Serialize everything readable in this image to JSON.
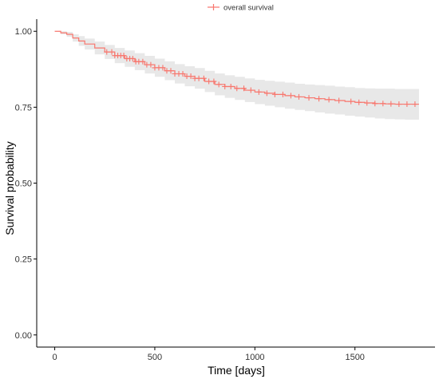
{
  "chart_data": {
    "type": "line",
    "title": "",
    "xlabel": "Time [days]",
    "ylabel": "Survival probability",
    "xlim": [
      -90,
      1900
    ],
    "ylim": [
      -0.04,
      1.04
    ],
    "x_ticks": [
      0,
      500,
      1000,
      1500
    ],
    "x_tick_labels": [
      "0",
      "500",
      "1000",
      "1500"
    ],
    "y_ticks": [
      0.0,
      0.25,
      0.5,
      0.75,
      1.0
    ],
    "y_tick_labels": [
      "0.00",
      "0.25",
      "0.50",
      "0.75",
      "1.00"
    ],
    "grid": false,
    "legend": {
      "position": "top",
      "entries": [
        "overall survival"
      ]
    },
    "colors": {
      "line": "#F8766D",
      "band": "#e8e8e8",
      "axis": "#000000"
    },
    "series": [
      {
        "name": "overall survival",
        "x": [
          0,
          30,
          60,
          90,
          120,
          150,
          200,
          250,
          300,
          350,
          400,
          450,
          500,
          550,
          600,
          650,
          700,
          750,
          800,
          850,
          900,
          950,
          1000,
          1050,
          1100,
          1150,
          1200,
          1250,
          1300,
          1350,
          1400,
          1450,
          1500,
          1550,
          1600,
          1650,
          1700,
          1750,
          1820
        ],
        "y": [
          1.0,
          0.995,
          0.99,
          0.978,
          0.968,
          0.958,
          0.945,
          0.932,
          0.92,
          0.91,
          0.9,
          0.89,
          0.88,
          0.87,
          0.86,
          0.852,
          0.845,
          0.835,
          0.825,
          0.818,
          0.812,
          0.806,
          0.8,
          0.796,
          0.792,
          0.788,
          0.784,
          0.781,
          0.778,
          0.775,
          0.772,
          0.769,
          0.766,
          0.764,
          0.762,
          0.761,
          0.76,
          0.76,
          0.76
        ],
        "lower": [
          1.0,
          0.99,
          0.982,
          0.966,
          0.952,
          0.94,
          0.924,
          0.909,
          0.895,
          0.883,
          0.872,
          0.861,
          0.85,
          0.839,
          0.828,
          0.819,
          0.811,
          0.8,
          0.789,
          0.781,
          0.774,
          0.767,
          0.76,
          0.755,
          0.75,
          0.745,
          0.741,
          0.737,
          0.733,
          0.729,
          0.726,
          0.722,
          0.719,
          0.716,
          0.713,
          0.711,
          0.71,
          0.709,
          0.708
        ],
        "upper": [
          1.0,
          1.0,
          0.998,
          0.99,
          0.984,
          0.976,
          0.966,
          0.955,
          0.945,
          0.937,
          0.928,
          0.919,
          0.91,
          0.901,
          0.892,
          0.885,
          0.879,
          0.87,
          0.861,
          0.855,
          0.85,
          0.845,
          0.84,
          0.837,
          0.834,
          0.831,
          0.827,
          0.825,
          0.823,
          0.821,
          0.818,
          0.816,
          0.813,
          0.812,
          0.811,
          0.811,
          0.81,
          0.81,
          0.81
        ],
        "censor_x": [
          260,
          285,
          300,
          315,
          330,
          345,
          360,
          375,
          390,
          405,
          420,
          440,
          460,
          480,
          500,
          520,
          540,
          560,
          580,
          600,
          620,
          640,
          660,
          680,
          700,
          720,
          745,
          770,
          795,
          820,
          850,
          880,
          910,
          945,
          980,
          1020,
          1060,
          1100,
          1140,
          1180,
          1220,
          1270,
          1320,
          1370,
          1420,
          1480,
          1520,
          1560,
          1600,
          1640,
          1680,
          1720,
          1760,
          1800
        ]
      }
    ]
  }
}
